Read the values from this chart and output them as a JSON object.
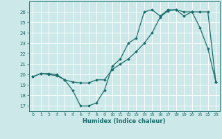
{
  "xlabel": "Humidex (Indice chaleur)",
  "ylabel": "",
  "bg_color": "#cce8e8",
  "line_color": "#1a6b6b",
  "grid_color": "#ffffff",
  "xlim": [
    -0.5,
    23.5
  ],
  "ylim": [
    16.5,
    27.0
  ],
  "yticks": [
    17,
    18,
    19,
    20,
    21,
    22,
    23,
    24,
    25,
    26
  ],
  "xticks": [
    0,
    1,
    2,
    3,
    4,
    5,
    6,
    7,
    8,
    9,
    10,
    11,
    12,
    13,
    14,
    15,
    16,
    17,
    18,
    19,
    20,
    21,
    22,
    23
  ],
  "line1_x": [
    0,
    1,
    2,
    3,
    4,
    5,
    6,
    7,
    8,
    9,
    10,
    11,
    12,
    13,
    14,
    15,
    16,
    17,
    18,
    19,
    20,
    21,
    22,
    23
  ],
  "line1_y": [
    19.8,
    20.1,
    20.1,
    20.0,
    19.5,
    19.3,
    19.2,
    19.2,
    19.5,
    19.5,
    20.5,
    21.0,
    21.5,
    22.2,
    23.0,
    24.0,
    25.5,
    26.1,
    26.2,
    25.6,
    26.0,
    26.0,
    26.0,
    19.3
  ],
  "line2_x": [
    0,
    1,
    2,
    3,
    4,
    5,
    6,
    7,
    8,
    9,
    10,
    11,
    12,
    13,
    14,
    15,
    16,
    17,
    18,
    19,
    20,
    21,
    22,
    23
  ],
  "line2_y": [
    19.8,
    20.1,
    20.0,
    19.9,
    19.5,
    18.5,
    17.0,
    17.0,
    17.3,
    18.5,
    20.8,
    21.5,
    23.0,
    23.5,
    26.0,
    26.2,
    25.6,
    26.2,
    26.2,
    26.0,
    26.0,
    24.5,
    22.5,
    19.3
  ]
}
